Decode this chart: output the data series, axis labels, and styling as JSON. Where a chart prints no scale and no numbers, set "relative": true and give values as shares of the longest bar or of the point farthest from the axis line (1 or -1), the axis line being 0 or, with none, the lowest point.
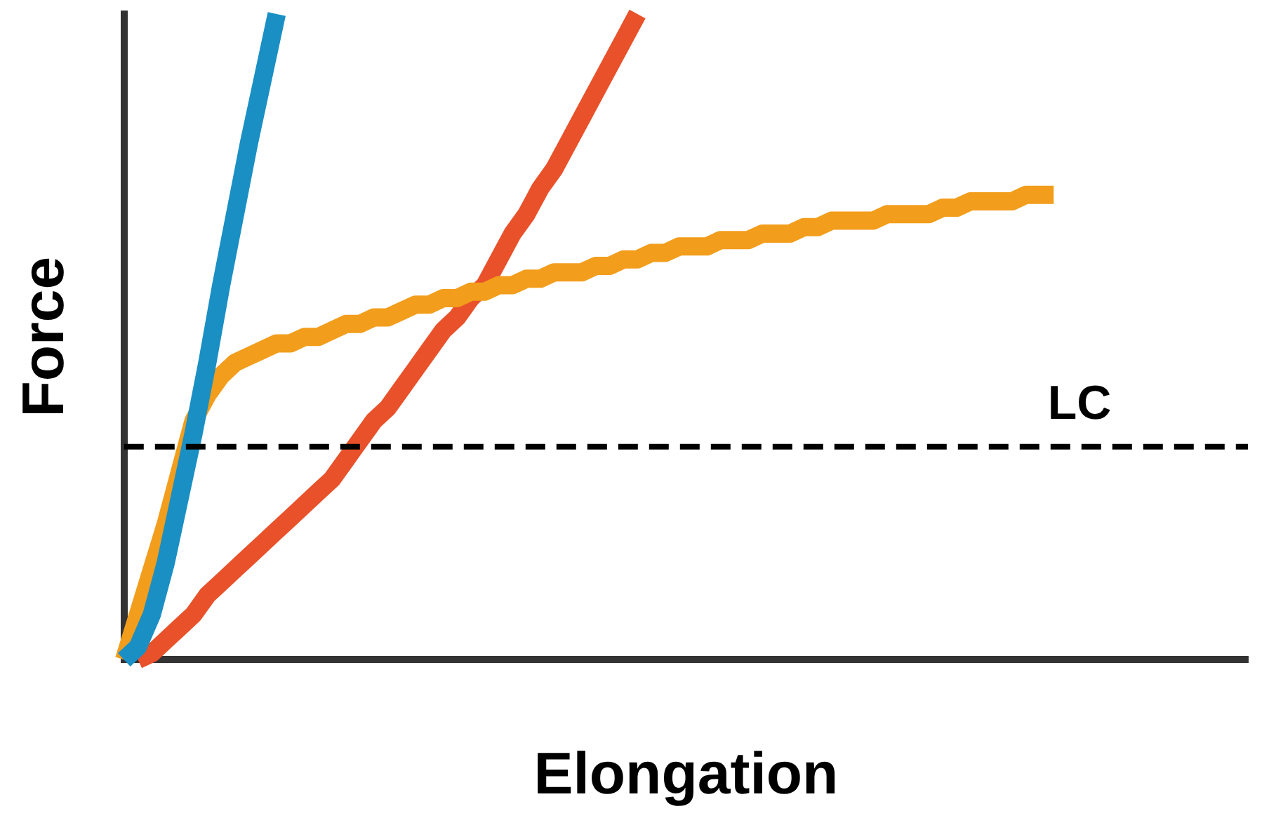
{
  "chart_data": {
    "type": "line",
    "relative": true,
    "xlabel": "Elongation",
    "ylabel": "Force",
    "categories": [
      null,
      null,
      null,
      null,
      null,
      null,
      null,
      null,
      null,
      null,
      null,
      null,
      null,
      null,
      null,
      null,
      null,
      null,
      null,
      null,
      null,
      null,
      null,
      null,
      null,
      null,
      null,
      null,
      null,
      null,
      null,
      null,
      null,
      null,
      null,
      null,
      null,
      null,
      null,
      null,
      null,
      null,
      null,
      null,
      null,
      null,
      null,
      null,
      null,
      null,
      null,
      null,
      null,
      null,
      null,
      null,
      null,
      null,
      null,
      null,
      null,
      null,
      null,
      null,
      null,
      null,
      null,
      null,
      null,
      null,
      null,
      null,
      null,
      null,
      null,
      null,
      null,
      null,
      null,
      null,
      null,
      null
    ],
    "series": [
      {
        "color": "#1a8fc4",
        "values": [
          0,
          0.02,
          0.07,
          0.15,
          0.25,
          0.35,
          0.46,
          0.58,
          0.69,
          0.8,
          0.9,
          1,
          null,
          null,
          null,
          null,
          null,
          null,
          null,
          null,
          null,
          null,
          null,
          null,
          null,
          null,
          null,
          null,
          null,
          null,
          null,
          null,
          null,
          null,
          null,
          null,
          null,
          null,
          null,
          null,
          null,
          null,
          null,
          null,
          null,
          null,
          null,
          null,
          null,
          null,
          null,
          null,
          null,
          null,
          null,
          null,
          null,
          null,
          null,
          null,
          null,
          null,
          null,
          null,
          null,
          null,
          null,
          null,
          null,
          null,
          null,
          null,
          null,
          null,
          null,
          null,
          null,
          null,
          null,
          null,
          null,
          null
        ]
      },
      {
        "color": "#f29d1c",
        "values": [
          0,
          0.07,
          0.14,
          0.21,
          0.29,
          0.37,
          0.41,
          0.44,
          0.46,
          0.47,
          0.48,
          0.49,
          0.49,
          0.5,
          0.5,
          0.51,
          0.52,
          0.52,
          0.53,
          0.53,
          0.54,
          0.55,
          0.55,
          0.56,
          0.56,
          0.57,
          0.57,
          0.58,
          0.58,
          0.59,
          0.59,
          0.6,
          0.6,
          0.6,
          0.61,
          0.61,
          0.62,
          0.62,
          0.63,
          0.63,
          0.64,
          0.64,
          0.64,
          0.65,
          0.65,
          0.65,
          0.66,
          0.66,
          0.66,
          0.67,
          0.67,
          0.68,
          0.68,
          0.68,
          0.68,
          0.69,
          0.69,
          0.69,
          0.69,
          0.7,
          0.7,
          0.71,
          0.71,
          0.71,
          0.71,
          0.72,
          0.72,
          0.72,
          null,
          null,
          null,
          null,
          null,
          null,
          null,
          null,
          null,
          null,
          null,
          null,
          null,
          null
        ]
      },
      {
        "color": "#e8512a",
        "values": [
          null,
          0,
          0.01,
          0.03,
          0.05,
          0.07,
          0.1,
          0.12,
          0.14,
          0.16,
          0.18,
          0.2,
          0.22,
          0.24,
          0.26,
          0.28,
          0.31,
          0.34,
          0.37,
          0.39,
          0.42,
          0.45,
          0.48,
          0.51,
          0.53,
          0.56,
          0.58,
          0.62,
          0.66,
          0.69,
          0.73,
          0.76,
          0.8,
          0.84,
          0.88,
          0.92,
          0.96,
          1.0,
          null,
          null,
          null,
          null,
          null,
          null,
          null,
          null,
          null,
          null,
          null,
          null,
          null,
          null,
          null,
          null,
          null,
          null,
          null,
          null,
          null,
          null,
          null,
          null,
          null,
          null,
          null,
          null,
          null,
          null,
          null,
          null,
          null,
          null,
          null,
          null,
          null,
          null,
          null,
          null,
          null,
          null,
          null,
          null
        ]
      }
    ],
    "ref_lines": [
      {
        "axis": "y",
        "value": 0.33,
        "label": "LC",
        "color": "#000000",
        "line_style": "dashed"
      }
    ],
    "marker": "none",
    "grid": false,
    "legend": false
  }
}
